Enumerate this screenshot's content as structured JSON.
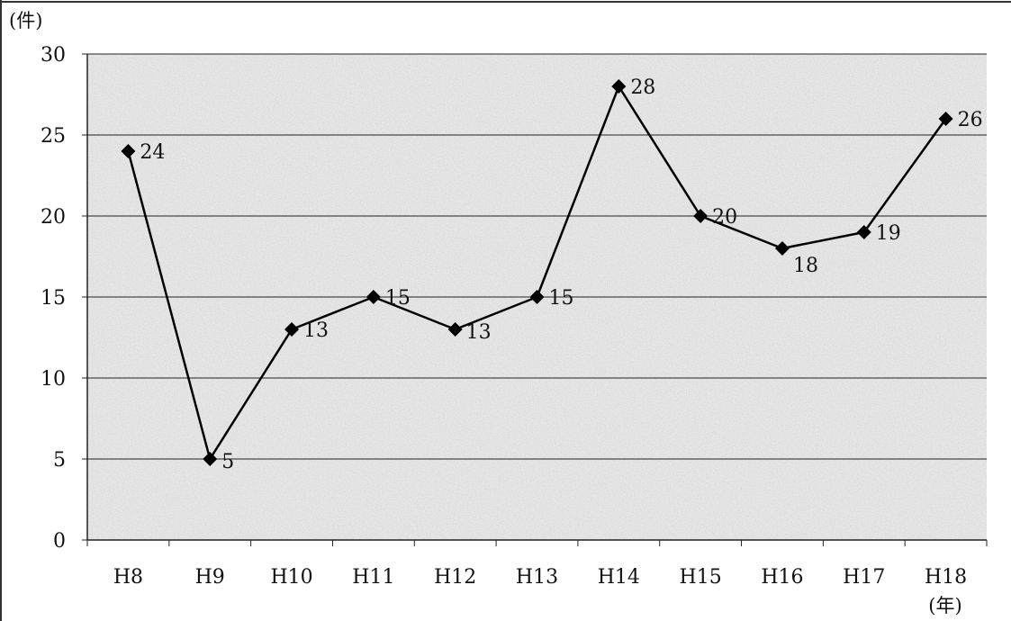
{
  "chart_data": {
    "type": "line",
    "categories": [
      "H8",
      "H9",
      "H10",
      "H11",
      "H12",
      "H13",
      "H14",
      "H15",
      "H16",
      "H17",
      "H18"
    ],
    "series": [
      {
        "values": [
          24,
          5,
          13,
          15,
          13,
          15,
          28,
          20,
          18,
          19,
          26
        ],
        "marker": "diamond",
        "color": "#000000"
      }
    ],
    "data_labels": [
      "24",
      "5",
      "13",
      "15",
      "13",
      "15",
      "28",
      "20",
      "18",
      "19",
      "26"
    ],
    "y_ticks": [
      "0",
      "5",
      "10",
      "15",
      "20",
      "25",
      "30"
    ],
    "ylim": [
      0,
      30
    ],
    "ylabel": "(件)",
    "xlabel": "(年)",
    "grid": true,
    "legend": "none",
    "plot_background": "#d9d9d9"
  }
}
